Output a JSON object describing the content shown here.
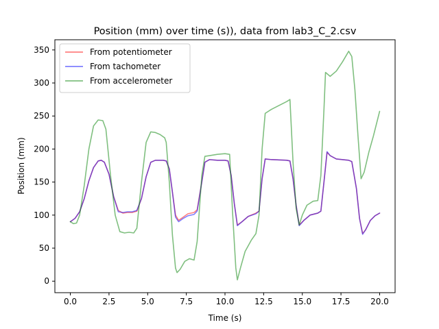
{
  "chart_data": {
    "type": "line",
    "title": "Position (mm) over time (s)), data from lab3_C_2.csv",
    "xlabel": "Time (s)",
    "ylabel": "Position (mm)",
    "xlim": [
      -1.0,
      21.0
    ],
    "ylim": [
      -17.4,
      365.4
    ],
    "xticks": [
      0.0,
      2.5,
      5.0,
      7.5,
      10.0,
      12.5,
      15.0,
      17.5,
      20.0
    ],
    "xtick_labels": [
      "0.0",
      "2.5",
      "5.0",
      "7.5",
      "10.0",
      "12.5",
      "15.0",
      "17.5",
      "20.0"
    ],
    "yticks": [
      0,
      50,
      100,
      150,
      200,
      250,
      300,
      350
    ],
    "ytick_labels": [
      "0",
      "50",
      "100",
      "150",
      "200",
      "250",
      "300",
      "350"
    ],
    "grid": false,
    "legend": {
      "position": "top-left"
    },
    "series": [
      {
        "name": "From potentiometer",
        "color": "#ff0000",
        "opacity": 0.5,
        "points": [
          [
            0.0,
            90
          ],
          [
            0.3,
            95
          ],
          [
            0.6,
            105
          ],
          [
            0.9,
            125
          ],
          [
            1.2,
            152
          ],
          [
            1.5,
            172
          ],
          [
            1.8,
            182
          ],
          [
            2.0,
            183
          ],
          [
            2.2,
            180
          ],
          [
            2.5,
            162
          ],
          [
            2.8,
            128
          ],
          [
            3.1,
            107
          ],
          [
            3.4,
            103
          ],
          [
            3.7,
            104
          ],
          [
            4.0,
            104
          ],
          [
            4.3,
            106
          ],
          [
            4.6,
            125
          ],
          [
            4.9,
            158
          ],
          [
            5.2,
            180
          ],
          [
            5.5,
            183
          ],
          [
            6.0,
            183
          ],
          [
            6.2,
            182
          ],
          [
            6.4,
            170
          ],
          [
            6.6,
            135
          ],
          [
            6.8,
            100
          ],
          [
            7.0,
            92
          ],
          [
            7.3,
            97
          ],
          [
            7.6,
            102
          ],
          [
            8.0,
            104
          ],
          [
            8.2,
            108
          ],
          [
            8.5,
            150
          ],
          [
            8.7,
            180
          ],
          [
            9.0,
            184
          ],
          [
            9.5,
            183
          ],
          [
            10.0,
            183
          ],
          [
            10.2,
            182
          ],
          [
            10.4,
            160
          ],
          [
            10.6,
            118
          ],
          [
            10.8,
            85
          ],
          [
            11.1,
            90
          ],
          [
            11.5,
            98
          ],
          [
            12.0,
            103
          ],
          [
            12.2,
            106
          ],
          [
            12.4,
            155
          ],
          [
            12.6,
            185
          ],
          [
            13.0,
            184
          ],
          [
            14.0,
            183
          ],
          [
            14.2,
            182
          ],
          [
            14.4,
            155
          ],
          [
            14.6,
            115
          ],
          [
            14.8,
            85
          ],
          [
            15.1,
            92
          ],
          [
            15.5,
            100
          ],
          [
            16.0,
            103
          ],
          [
            16.2,
            106
          ],
          [
            16.4,
            150
          ],
          [
            16.6,
            195
          ],
          [
            16.8,
            190
          ],
          [
            17.2,
            185
          ],
          [
            18.0,
            183
          ],
          [
            18.2,
            181
          ],
          [
            18.5,
            140
          ],
          [
            18.7,
            95
          ],
          [
            18.9,
            72
          ],
          [
            19.1,
            78
          ],
          [
            19.4,
            92
          ],
          [
            19.7,
            99
          ],
          [
            20.0,
            103
          ]
        ]
      },
      {
        "name": "From tachometer",
        "color": "#0000ff",
        "opacity": 0.5,
        "points": [
          [
            0.0,
            90
          ],
          [
            0.3,
            95
          ],
          [
            0.6,
            105
          ],
          [
            0.9,
            125
          ],
          [
            1.2,
            152
          ],
          [
            1.5,
            172
          ],
          [
            1.8,
            182
          ],
          [
            2.0,
            183
          ],
          [
            2.2,
            180
          ],
          [
            2.5,
            162
          ],
          [
            2.8,
            128
          ],
          [
            3.1,
            105
          ],
          [
            3.4,
            104
          ],
          [
            3.7,
            105
          ],
          [
            4.0,
            105
          ],
          [
            4.3,
            107
          ],
          [
            4.6,
            125
          ],
          [
            4.9,
            158
          ],
          [
            5.2,
            180
          ],
          [
            5.5,
            183
          ],
          [
            6.0,
            183
          ],
          [
            6.2,
            182
          ],
          [
            6.4,
            170
          ],
          [
            6.6,
            135
          ],
          [
            6.8,
            97
          ],
          [
            7.0,
            90
          ],
          [
            7.3,
            95
          ],
          [
            7.6,
            99
          ],
          [
            8.0,
            101
          ],
          [
            8.2,
            106
          ],
          [
            8.5,
            150
          ],
          [
            8.7,
            180
          ],
          [
            9.0,
            184
          ],
          [
            9.5,
            183
          ],
          [
            10.0,
            183
          ],
          [
            10.2,
            182
          ],
          [
            10.4,
            160
          ],
          [
            10.6,
            118
          ],
          [
            10.8,
            84
          ],
          [
            11.1,
            90
          ],
          [
            11.5,
            98
          ],
          [
            12.0,
            102
          ],
          [
            12.2,
            106
          ],
          [
            12.4,
            155
          ],
          [
            12.6,
            185
          ],
          [
            13.0,
            184
          ],
          [
            14.0,
            183
          ],
          [
            14.2,
            182
          ],
          [
            14.4,
            155
          ],
          [
            14.6,
            115
          ],
          [
            14.8,
            84
          ],
          [
            15.1,
            92
          ],
          [
            15.5,
            100
          ],
          [
            16.0,
            103
          ],
          [
            16.2,
            106
          ],
          [
            16.4,
            150
          ],
          [
            16.6,
            196
          ],
          [
            16.8,
            190
          ],
          [
            17.2,
            185
          ],
          [
            18.0,
            183
          ],
          [
            18.2,
            181
          ],
          [
            18.5,
            140
          ],
          [
            18.7,
            95
          ],
          [
            18.9,
            71
          ],
          [
            19.1,
            78
          ],
          [
            19.4,
            92
          ],
          [
            19.7,
            99
          ],
          [
            20.0,
            103
          ]
        ]
      },
      {
        "name": "From accelerometer",
        "color": "#008000",
        "opacity": 0.5,
        "points": [
          [
            0.0,
            90
          ],
          [
            0.2,
            87
          ],
          [
            0.4,
            88
          ],
          [
            0.6,
            100
          ],
          [
            0.9,
            145
          ],
          [
            1.2,
            200
          ],
          [
            1.5,
            235
          ],
          [
            1.8,
            244
          ],
          [
            2.1,
            243
          ],
          [
            2.3,
            230
          ],
          [
            2.6,
            160
          ],
          [
            2.9,
            100
          ],
          [
            3.2,
            75
          ],
          [
            3.5,
            73
          ],
          [
            3.8,
            74
          ],
          [
            4.1,
            73
          ],
          [
            4.3,
            80
          ],
          [
            4.6,
            150
          ],
          [
            4.9,
            210
          ],
          [
            5.2,
            226
          ],
          [
            5.5,
            225
          ],
          [
            5.8,
            222
          ],
          [
            6.1,
            217
          ],
          [
            6.2,
            210
          ],
          [
            6.4,
            150
          ],
          [
            6.6,
            70
          ],
          [
            6.8,
            20
          ],
          [
            6.9,
            13
          ],
          [
            7.1,
            18
          ],
          [
            7.4,
            30
          ],
          [
            7.7,
            34
          ],
          [
            8.0,
            32
          ],
          [
            8.2,
            60
          ],
          [
            8.5,
            160
          ],
          [
            8.7,
            189
          ],
          [
            9.0,
            190
          ],
          [
            9.5,
            192
          ],
          [
            10.0,
            193
          ],
          [
            10.3,
            192
          ],
          [
            10.5,
            100
          ],
          [
            10.7,
            20
          ],
          [
            10.8,
            2
          ],
          [
            11.0,
            20
          ],
          [
            11.3,
            45
          ],
          [
            11.7,
            62
          ],
          [
            12.0,
            72
          ],
          [
            12.2,
            100
          ],
          [
            12.4,
            200
          ],
          [
            12.6,
            254
          ],
          [
            13.0,
            260
          ],
          [
            13.5,
            266
          ],
          [
            14.0,
            272
          ],
          [
            14.2,
            275
          ],
          [
            14.4,
            180
          ],
          [
            14.6,
            110
          ],
          [
            14.8,
            85
          ],
          [
            15.0,
            100
          ],
          [
            15.3,
            115
          ],
          [
            15.7,
            121
          ],
          [
            16.0,
            122
          ],
          [
            16.2,
            160
          ],
          [
            16.4,
            260
          ],
          [
            16.5,
            316
          ],
          [
            16.8,
            310
          ],
          [
            17.2,
            318
          ],
          [
            17.6,
            332
          ],
          [
            18.0,
            348
          ],
          [
            18.2,
            340
          ],
          [
            18.4,
            290
          ],
          [
            18.6,
            220
          ],
          [
            18.8,
            155
          ],
          [
            19.0,
            165
          ],
          [
            19.3,
            195
          ],
          [
            19.6,
            220
          ],
          [
            20.0,
            257
          ]
        ]
      }
    ]
  }
}
